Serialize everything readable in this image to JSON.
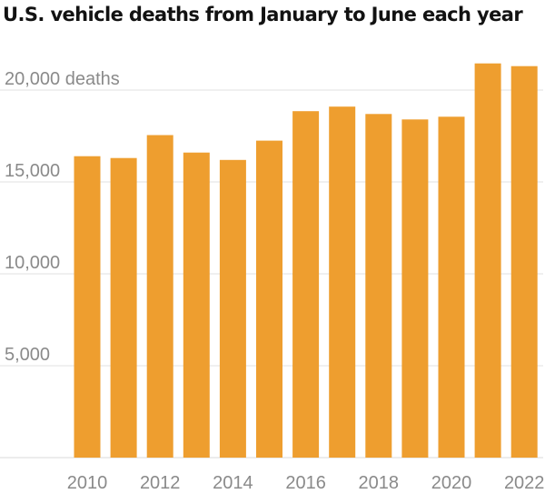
{
  "chart_data": {
    "type": "bar",
    "title": "U.S. vehicle deaths from January to June each year",
    "xlabel": "",
    "ylabel": "",
    "categories": [
      "2010",
      "2011",
      "2012",
      "2013",
      "2014",
      "2015",
      "2016",
      "2017",
      "2018",
      "2019",
      "2020",
      "2021",
      "2022"
    ],
    "values": [
      16400,
      16300,
      17550,
      16600,
      16200,
      17250,
      18850,
      19100,
      18700,
      18400,
      18550,
      21450,
      21300
    ],
    "ylim": [
      0,
      22000
    ],
    "y_ticks": [
      {
        "value": 5000,
        "label": "5,000"
      },
      {
        "value": 10000,
        "label": "10,000"
      },
      {
        "value": 15000,
        "label": "15,000"
      },
      {
        "value": 20000,
        "label": "20,000 deaths"
      }
    ],
    "x_tick_labels": [
      "2010",
      "2012",
      "2014",
      "2016",
      "2018",
      "2020",
      "2022"
    ],
    "bar_color": "#ee9e2f",
    "grid": true,
    "legend": "none"
  }
}
